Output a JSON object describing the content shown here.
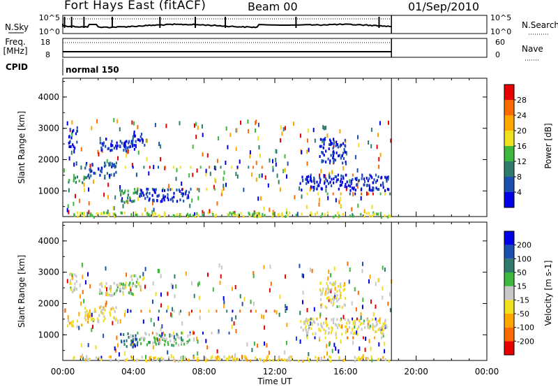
{
  "header": {
    "title": "Fort Hays East (fitACF)",
    "beam": "Beam 00",
    "date": "01/Sep/2010"
  },
  "strip_nsky": {
    "left_label": "N.Sky",
    "left_ticks": [
      "10^5",
      "10^0"
    ],
    "right_ticks": [
      "10^5",
      "10^0"
    ],
    "right_label": "N.Search"
  },
  "strip_freq": {
    "left_label": "Freq.",
    "left_unit": "[MHz]",
    "left_ticks": [
      "18",
      "8"
    ],
    "right_ticks": [
      "60",
      "0"
    ],
    "right_label": "Nave"
  },
  "cpid": {
    "label": "CPID",
    "value": "normal 150"
  },
  "time_axis": {
    "ticks": [
      "00:00",
      "04:00",
      "08:00",
      "12:00",
      "16:00",
      "20:00",
      "00:00"
    ],
    "label": "Time UT"
  },
  "colors": {
    "power_scale": [
      "#0000e6",
      "#1d4fb0",
      "#2e7b6e",
      "#3cb83c",
      "#f0e020",
      "#ffa500",
      "#ff6a00",
      "#e60000"
    ],
    "velocity_scale": [
      "#e60000",
      "#ff6a00",
      "#ffa500",
      "#f0e020",
      "#c8c8c8",
      "#3cb83c",
      "#2e7b6e",
      "#1d4fb0",
      "#0000e6"
    ]
  },
  "chart_data": [
    {
      "type": "heatmap",
      "name": "power",
      "ylabel": "Slant Range [km]",
      "yticks": [
        1000,
        2000,
        3000,
        4000
      ],
      "ylim": [
        180,
        4600
      ],
      "xlim": [
        0,
        24
      ],
      "colorbar": {
        "label": "Power [dB]",
        "ticks": [
          "4",
          "8",
          "12",
          "16",
          "20",
          "24",
          "28"
        ]
      },
      "regions": [
        {
          "t": [
            0.1,
            1.2
          ],
          "r": [
            1300,
            1500
          ],
          "v": 0.35
        },
        {
          "t": [
            0.3,
            0.8
          ],
          "r": [
            2400,
            3100
          ],
          "v": 0.1
        },
        {
          "t": [
            1.2,
            3.0
          ],
          "r": [
            1450,
            1950
          ],
          "v": 0.2
        },
        {
          "t": [
            2.0,
            4.1
          ],
          "r": [
            2300,
            2700
          ],
          "v": 0.1
        },
        {
          "t": [
            3.7,
            4.6
          ],
          "r": [
            2500,
            2950
          ],
          "v": 0.15
        },
        {
          "t": [
            3.2,
            4.2
          ],
          "r": [
            650,
            1100
          ],
          "v": 0.4
        },
        {
          "t": [
            4.3,
            7.2
          ],
          "r": [
            700,
            1100
          ],
          "v": 0.12
        },
        {
          "t": [
            13.4,
            18.4
          ],
          "r": [
            1050,
            1550
          ],
          "v": 0.1
        },
        {
          "t": [
            14.5,
            16.0
          ],
          "r": [
            1900,
            2700
          ],
          "v": 0.12
        },
        {
          "t": [
            0.5,
            18.5
          ],
          "r": [
            200,
            350
          ],
          "v": 0.5
        }
      ]
    },
    {
      "type": "heatmap",
      "name": "velocity",
      "ylabel": "Slant Range [km]",
      "yticks": [
        1000,
        2000,
        3000,
        4000
      ],
      "ylim": [
        180,
        4600
      ],
      "xlim": [
        0,
        24
      ],
      "colorbar": {
        "label": "Velocity [m s-1]",
        "ticks": [
          "-200",
          "-100",
          "-50",
          "-15",
          "15",
          "50",
          "100",
          "200"
        ]
      },
      "regions": [
        {
          "t": [
            0.1,
            1.2
          ],
          "r": [
            1300,
            1500
          ],
          "v": 0.4
        },
        {
          "t": [
            0.3,
            0.8
          ],
          "r": [
            2400,
            3100
          ],
          "v": 0.5
        },
        {
          "t": [
            1.2,
            3.0
          ],
          "r": [
            1450,
            1950
          ],
          "v": 0.4
        },
        {
          "t": [
            2.0,
            4.1
          ],
          "r": [
            2300,
            2700
          ],
          "v": 0.5
        },
        {
          "t": [
            3.7,
            4.6
          ],
          "r": [
            2500,
            2950
          ],
          "v": 0.5
        },
        {
          "t": [
            3.2,
            4.2
          ],
          "r": [
            650,
            1100
          ],
          "v": 0.8
        },
        {
          "t": [
            4.3,
            7.2
          ],
          "r": [
            700,
            1100
          ],
          "v": 0.6
        },
        {
          "t": [
            13.4,
            18.4
          ],
          "r": [
            1050,
            1550
          ],
          "v": 0.45
        },
        {
          "t": [
            14.5,
            16.0
          ],
          "r": [
            1900,
            2700
          ],
          "v": 0.45
        },
        {
          "t": [
            0.5,
            18.5
          ],
          "r": [
            200,
            350
          ],
          "v": 0.4
        }
      ]
    }
  ]
}
